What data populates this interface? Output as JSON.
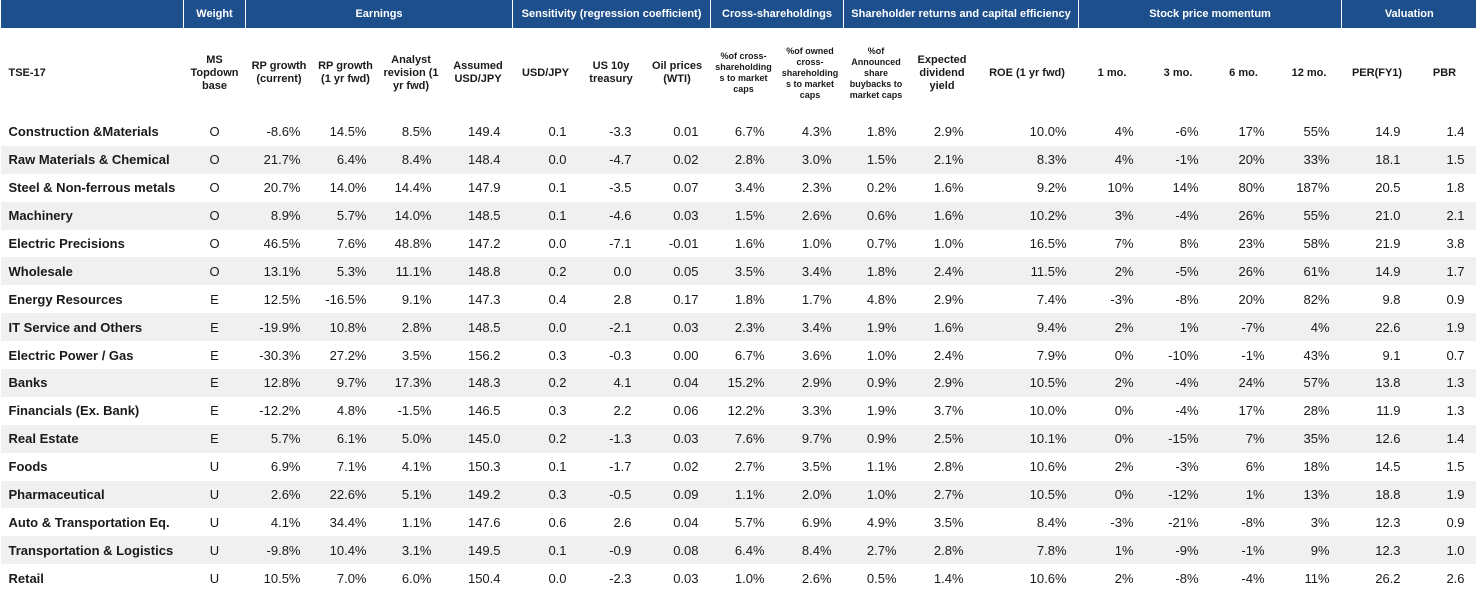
{
  "table": {
    "groups": [
      "Weight",
      "Earnings",
      "Sensitivity (regression coefficient)",
      "Cross-shareholdings",
      "Shareholder returns and capital efficiency",
      "Stock price momentum",
      "Valuation"
    ],
    "columns": [
      "TSE-17",
      "MS Topdown base",
      "RP growth (current)",
      "RP growth (1 yr fwd)",
      "Analyst revision (1 yr fwd)",
      "Assumed USD/JPY",
      "USD/JPY",
      "US 10y treasury",
      "Oil prices (WTI)",
      "%of cross-shareholding s to market caps",
      "%of owned cross-shareholding s to market caps",
      "%of Announced share buybacks to market caps",
      "Expected dividend yield",
      "ROE (1 yr fwd)",
      "1 mo.",
      "3 mo.",
      "6 mo.",
      "12 mo.",
      "PER(FY1)",
      "PBR"
    ],
    "rows": [
      [
        "Construction &Materials",
        "O",
        "-8.6%",
        "14.5%",
        "8.5%",
        "149.4",
        "0.1",
        "-3.3",
        "0.01",
        "6.7%",
        "4.3%",
        "1.8%",
        "2.9%",
        "10.0%",
        "4%",
        "-6%",
        "17%",
        "55%",
        "14.9",
        "1.4"
      ],
      [
        "Raw Materials & Chemical",
        "O",
        "21.7%",
        "6.4%",
        "8.4%",
        "148.4",
        "0.0",
        "-4.7",
        "0.02",
        "2.8%",
        "3.0%",
        "1.5%",
        "2.1%",
        "8.3%",
        "4%",
        "-1%",
        "20%",
        "33%",
        "18.1",
        "1.5"
      ],
      [
        "Steel & Non-ferrous metals",
        "O",
        "20.7%",
        "14.0%",
        "14.4%",
        "147.9",
        "0.1",
        "-3.5",
        "0.07",
        "3.4%",
        "2.3%",
        "0.2%",
        "1.6%",
        "9.2%",
        "10%",
        "14%",
        "80%",
        "187%",
        "20.5",
        "1.8"
      ],
      [
        "Machinery",
        "O",
        "8.9%",
        "5.7%",
        "14.0%",
        "148.5",
        "0.1",
        "-4.6",
        "0.03",
        "1.5%",
        "2.6%",
        "0.6%",
        "1.6%",
        "10.2%",
        "3%",
        "-4%",
        "26%",
        "55%",
        "21.0",
        "2.1"
      ],
      [
        "Electric Precisions",
        "O",
        "46.5%",
        "7.6%",
        "48.8%",
        "147.2",
        "0.0",
        "-7.1",
        "-0.01",
        "1.6%",
        "1.0%",
        "0.7%",
        "1.0%",
        "16.5%",
        "7%",
        "8%",
        "23%",
        "58%",
        "21.9",
        "3.8"
      ],
      [
        "Wholesale",
        "O",
        "13.1%",
        "5.3%",
        "11.1%",
        "148.8",
        "0.2",
        "0.0",
        "0.05",
        "3.5%",
        "3.4%",
        "1.8%",
        "2.4%",
        "11.5%",
        "2%",
        "-5%",
        "26%",
        "61%",
        "14.9",
        "1.7"
      ],
      [
        "Energy Resources",
        "E",
        "12.5%",
        "-16.5%",
        "9.1%",
        "147.3",
        "0.4",
        "2.8",
        "0.17",
        "1.8%",
        "1.7%",
        "4.8%",
        "2.9%",
        "7.4%",
        "-3%",
        "-8%",
        "20%",
        "82%",
        "9.8",
        "0.9"
      ],
      [
        "IT Service and Others",
        "E",
        "-19.9%",
        "10.8%",
        "2.8%",
        "148.5",
        "0.0",
        "-2.1",
        "0.03",
        "2.3%",
        "3.4%",
        "1.9%",
        "1.6%",
        "9.4%",
        "2%",
        "1%",
        "-7%",
        "4%",
        "22.6",
        "1.9"
      ],
      [
        "Electric Power / Gas",
        "E",
        "-30.3%",
        "27.2%",
        "3.5%",
        "156.2",
        "0.3",
        "-0.3",
        "0.00",
        "6.7%",
        "3.6%",
        "1.0%",
        "2.4%",
        "7.9%",
        "0%",
        "-10%",
        "-1%",
        "43%",
        "9.1",
        "0.7"
      ],
      [
        "Banks",
        "E",
        "12.8%",
        "9.7%",
        "17.3%",
        "148.3",
        "0.2",
        "4.1",
        "0.04",
        "15.2%",
        "2.9%",
        "0.9%",
        "2.9%",
        "10.5%",
        "2%",
        "-4%",
        "24%",
        "57%",
        "13.8",
        "1.3"
      ],
      [
        "Financials (Ex. Bank)",
        "E",
        "-12.2%",
        "4.8%",
        "-1.5%",
        "146.5",
        "0.3",
        "2.2",
        "0.06",
        "12.2%",
        "3.3%",
        "1.9%",
        "3.7%",
        "10.0%",
        "0%",
        "-4%",
        "17%",
        "28%",
        "11.9",
        "1.3"
      ],
      [
        "Real Estate",
        "E",
        "5.7%",
        "6.1%",
        "5.0%",
        "145.0",
        "0.2",
        "-1.3",
        "0.03",
        "7.6%",
        "9.7%",
        "0.9%",
        "2.5%",
        "10.1%",
        "0%",
        "-15%",
        "7%",
        "35%",
        "12.6",
        "1.4"
      ],
      [
        "Foods",
        "U",
        "6.9%",
        "7.1%",
        "4.1%",
        "150.3",
        "0.1",
        "-1.7",
        "0.02",
        "2.7%",
        "3.5%",
        "1.1%",
        "2.8%",
        "10.6%",
        "2%",
        "-3%",
        "6%",
        "18%",
        "14.5",
        "1.5"
      ],
      [
        "Pharmaceutical",
        "U",
        "2.6%",
        "22.6%",
        "5.1%",
        "149.2",
        "0.3",
        "-0.5",
        "0.09",
        "1.1%",
        "2.0%",
        "1.0%",
        "2.7%",
        "10.5%",
        "0%",
        "-12%",
        "1%",
        "13%",
        "18.8",
        "1.9"
      ],
      [
        "Auto & Transportation Eq.",
        "U",
        "4.1%",
        "34.4%",
        "1.1%",
        "147.6",
        "0.6",
        "2.6",
        "0.04",
        "5.7%",
        "6.9%",
        "4.9%",
        "3.5%",
        "8.4%",
        "-3%",
        "-21%",
        "-8%",
        "3%",
        "12.3",
        "0.9"
      ],
      [
        "Transportation & Logistics",
        "U",
        "-9.8%",
        "10.4%",
        "3.1%",
        "149.5",
        "0.1",
        "-0.9",
        "0.08",
        "6.4%",
        "8.4%",
        "2.7%",
        "2.8%",
        "7.8%",
        "1%",
        "-9%",
        "-1%",
        "9%",
        "12.3",
        "1.0"
      ],
      [
        "Retail",
        "U",
        "10.5%",
        "7.0%",
        "6.0%",
        "150.4",
        "0.0",
        "-2.3",
        "0.03",
        "1.0%",
        "2.6%",
        "0.5%",
        "1.4%",
        "10.6%",
        "2%",
        "-8%",
        "-4%",
        "11%",
        "26.2",
        "2.6"
      ]
    ]
  }
}
